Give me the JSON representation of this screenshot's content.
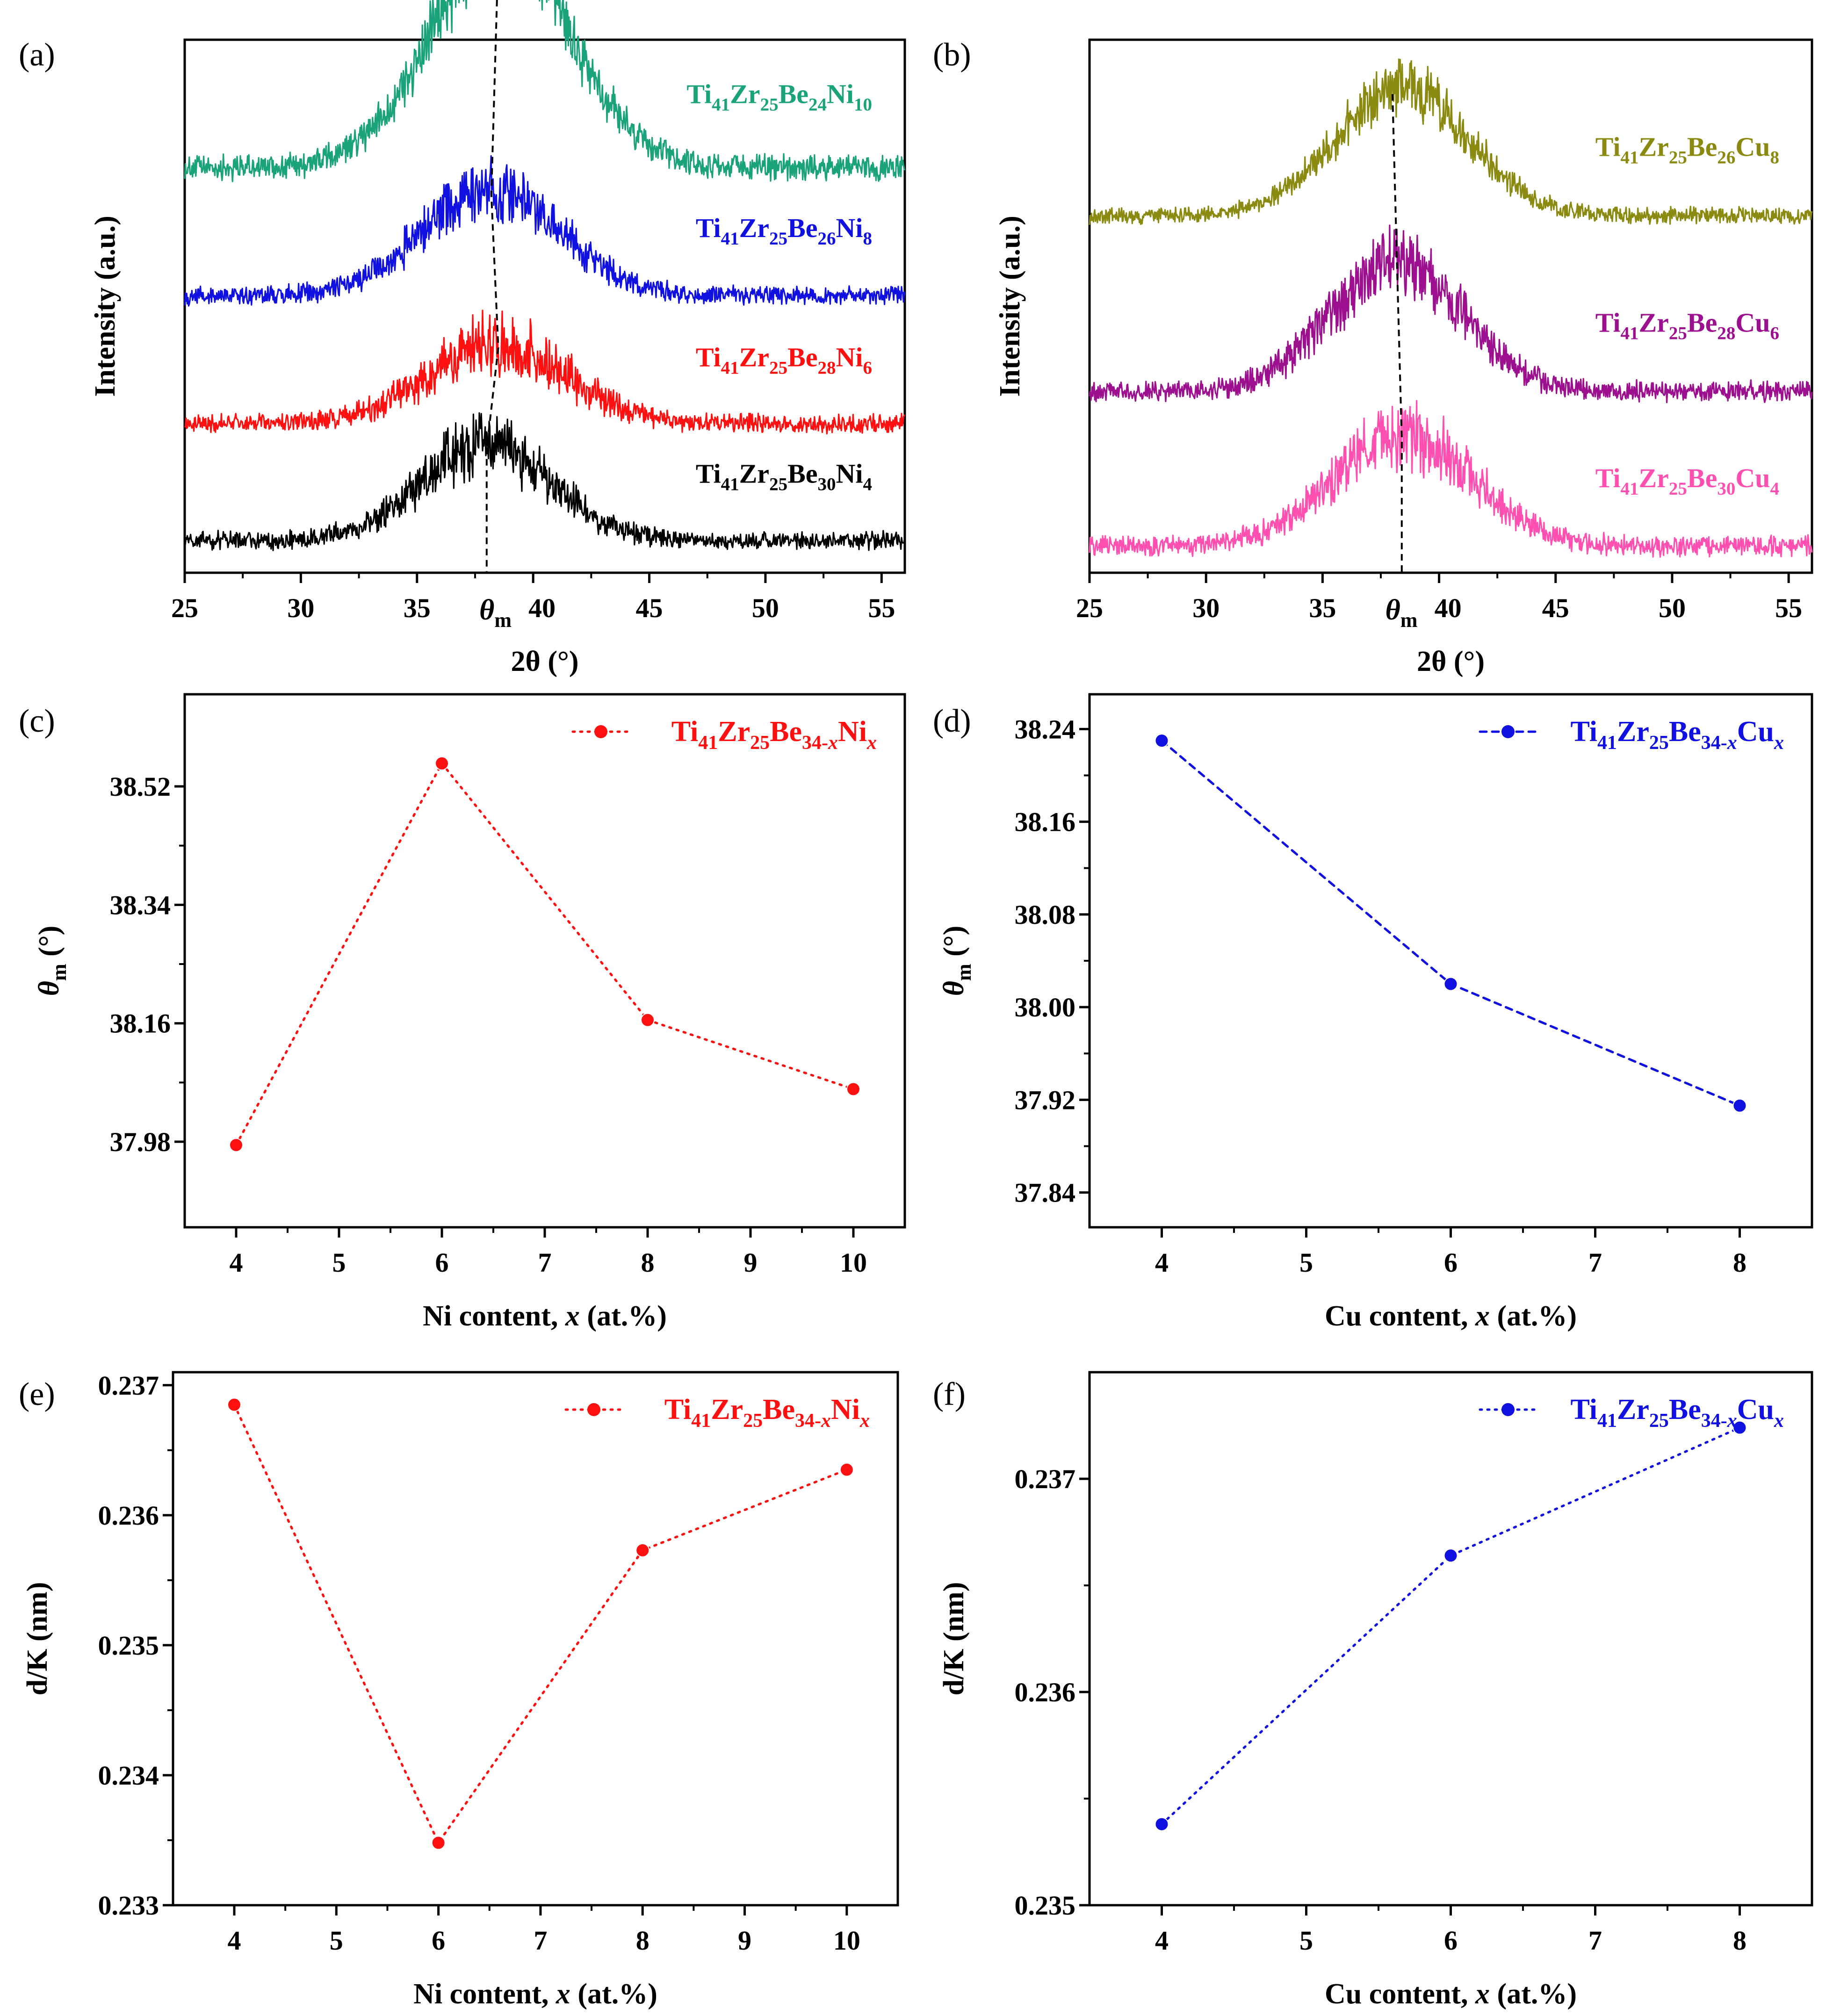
{
  "panels": [
    {
      "id": "a",
      "label": "(a)",
      "chart_data": {
        "type": "line",
        "title": "",
        "xlabel": "2θ (°)",
        "ylabel": "Intensity (a.u.)",
        "xlim": [
          25,
          56
        ],
        "xticks": [
          25,
          30,
          35,
          40,
          45,
          50,
          55
        ],
        "xtick_labels": [
          "25",
          "30",
          "35",
          "40",
          "45",
          "50",
          "55"
        ],
        "marker_label": "θ",
        "marker_sub": "m",
        "series": [
          {
            "name": "Ti41Zr25Be24Ni10",
            "parts": [
              [
                "Ti",
                ""
              ],
              [
                "41",
                "sub"
              ],
              [
                "Zr",
                ""
              ],
              [
                "25",
                "sub"
              ],
              [
                "Be",
                ""
              ],
              [
                "24",
                "sub"
              ],
              [
                "Ni",
                ""
              ],
              [
                "10",
                "sub"
              ]
            ],
            "color": "#1aa37a",
            "baseline": 0.24,
            "amp": 0.42,
            "peak": 38.6,
            "width": 4.2,
            "noise": 0.07
          },
          {
            "name": "Ti41Zr25Be26Ni8",
            "parts": [
              [
                "Ti",
                ""
              ],
              [
                "41",
                "sub"
              ],
              [
                "Zr",
                ""
              ],
              [
                "25",
                "sub"
              ],
              [
                "Be",
                ""
              ],
              [
                "26",
                "sub"
              ],
              [
                "Ni",
                ""
              ],
              [
                "8",
                "sub"
              ]
            ],
            "color": "#1010e0",
            "baseline": 0.48,
            "amp": 0.2,
            "peak": 38.2,
            "width": 4.2,
            "noise": 0.05
          },
          {
            "name": "Ti41Zr25Be28Ni6",
            "parts": [
              [
                "Ti",
                ""
              ],
              [
                "41",
                "sub"
              ],
              [
                "Zr",
                ""
              ],
              [
                "25",
                "sub"
              ],
              [
                "Be",
                ""
              ],
              [
                "28",
                "sub"
              ],
              [
                "Ni",
                ""
              ],
              [
                "6",
                "sub"
              ]
            ],
            "color": "#ff1010",
            "baseline": 0.72,
            "amp": 0.15,
            "peak": 38.5,
            "width": 4.2,
            "noise": 0.05
          },
          {
            "name": "Ti41Zr25Be30Ni4",
            "parts": [
              [
                "Ti",
                ""
              ],
              [
                "41",
                "sub"
              ],
              [
                "Zr",
                ""
              ],
              [
                "25",
                "sub"
              ],
              [
                "Be",
                ""
              ],
              [
                "30",
                "sub"
              ],
              [
                "Ni",
                ""
              ],
              [
                "4",
                "sub"
              ]
            ],
            "color": "#000000",
            "baseline": 0.94,
            "amp": 0.18,
            "peak": 38.0,
            "width": 4.0,
            "noise": 0.05
          }
        ],
        "peak_line_x": [
          38.5,
          38.2,
          38.5,
          38.0
        ]
      }
    },
    {
      "id": "b",
      "label": "(b)",
      "chart_data": {
        "type": "line",
        "title": "",
        "xlabel": "2θ (°)",
        "ylabel": "Intensity (a.u.)",
        "xlim": [
          25,
          56
        ],
        "xticks": [
          25,
          30,
          35,
          40,
          45,
          50,
          55
        ],
        "xtick_labels": [
          "25",
          "30",
          "35",
          "40",
          "45",
          "50",
          "55"
        ],
        "marker_label": "θ",
        "marker_sub": "m",
        "series": [
          {
            "name": "Ti41Zr25Be26Cu8",
            "parts": [
              [
                "Ti",
                ""
              ],
              [
                "41",
                "sub"
              ],
              [
                "Zr",
                ""
              ],
              [
                "25",
                "sub"
              ],
              [
                "Be",
                ""
              ],
              [
                "26",
                "sub"
              ],
              [
                "Cu",
                ""
              ],
              [
                "8",
                "sub"
              ]
            ],
            "color": "#8a8a10",
            "baseline": 0.33,
            "amp": 0.24,
            "peak": 38.4,
            "width": 4.0,
            "noise": 0.045
          },
          {
            "name": "Ti41Zr25Be28Cu6",
            "parts": [
              [
                "Ti",
                ""
              ],
              [
                "41",
                "sub"
              ],
              [
                "Zr",
                ""
              ],
              [
                "25",
                "sub"
              ],
              [
                "Be",
                ""
              ],
              [
                "28",
                "sub"
              ],
              [
                "Cu",
                ""
              ],
              [
                "6",
                "sub"
              ]
            ],
            "color": "#9c1090",
            "baseline": 0.66,
            "amp": 0.24,
            "peak": 38.2,
            "width": 4.0,
            "noise": 0.055
          },
          {
            "name": "Ti41Zr25Be30Cu4",
            "parts": [
              [
                "Ti",
                ""
              ],
              [
                "41",
                "sub"
              ],
              [
                "Zr",
                ""
              ],
              [
                "25",
                "sub"
              ],
              [
                "Be",
                ""
              ],
              [
                "30",
                "sub"
              ],
              [
                "Cu",
                ""
              ],
              [
                "4",
                "sub"
              ]
            ],
            "color": "#ff4fb0",
            "baseline": 0.95,
            "amp": 0.21,
            "peak": 38.5,
            "width": 4.2,
            "noise": 0.055
          }
        ],
        "peak_line_x": [
          38.0,
          38.2,
          38.4
        ]
      }
    },
    {
      "id": "c",
      "label": "(c)",
      "chart_data": {
        "type": "scatter",
        "title": "",
        "xlabel_parts": [
          [
            "Ni content, ",
            ""
          ],
          [
            "x",
            "i"
          ],
          [
            " (at.%)",
            ""
          ]
        ],
        "ylabel": "θ",
        "ylabel_sub": "m",
        "ylabel_unit": " (°)",
        "xlim": [
          3.5,
          10.5
        ],
        "ylim": [
          37.85,
          38.66
        ],
        "xticks": [
          4,
          5,
          6,
          7,
          8,
          9,
          10
        ],
        "xtick_labels": [
          "4",
          "5",
          "6",
          "7",
          "8",
          "9",
          "10"
        ],
        "yticks": [
          37.98,
          38.16,
          38.34,
          38.52
        ],
        "ytick_labels": [
          "37.98",
          "38.16",
          "38.34",
          "38.52"
        ],
        "color": "#ff1010",
        "dash": "4 12",
        "legend_position": "top-right",
        "legend_parts": [
          [
            "Ti",
            ""
          ],
          [
            "41",
            "sub"
          ],
          [
            "Zr",
            ""
          ],
          [
            "25",
            "sub"
          ],
          [
            "Be",
            ""
          ],
          [
            "34-",
            "sub"
          ],
          [
            "x",
            "subi"
          ],
          [
            "Ni",
            ""
          ],
          [
            "x",
            "subi"
          ]
        ],
        "series": [
          {
            "name": "Ti41Zr25Be34-xNix",
            "x": [
              4,
              6,
              8,
              10
            ],
            "y": [
              37.975,
              38.555,
              38.165,
              38.06
            ]
          }
        ]
      }
    },
    {
      "id": "d",
      "label": "(d)",
      "chart_data": {
        "type": "scatter",
        "title": "",
        "xlabel_parts": [
          [
            "Cu content, ",
            ""
          ],
          [
            "x",
            "i"
          ],
          [
            " (at.%)",
            ""
          ]
        ],
        "ylabel": "θ",
        "ylabel_sub": "m",
        "ylabel_unit": " (°)",
        "xlim": [
          3.5,
          8.5
        ],
        "ylim": [
          37.81,
          38.27
        ],
        "xticks": [
          4,
          5,
          6,
          7,
          8
        ],
        "xtick_labels": [
          "4",
          "5",
          "6",
          "7",
          "8"
        ],
        "yticks": [
          37.84,
          37.92,
          38.0,
          38.08,
          38.16,
          38.24
        ],
        "ytick_labels": [
          "37.84",
          "37.92",
          "38.00",
          "38.08",
          "38.16",
          "38.24"
        ],
        "color": "#1010e0",
        "dash": "14 12",
        "legend_position": "top-right",
        "legend_parts": [
          [
            "Ti",
            ""
          ],
          [
            "41",
            "sub"
          ],
          [
            "Zr",
            ""
          ],
          [
            "25",
            "sub"
          ],
          [
            "Be",
            ""
          ],
          [
            "34-",
            "sub"
          ],
          [
            "x",
            "subi"
          ],
          [
            "Cu",
            ""
          ],
          [
            "x",
            "subi"
          ]
        ],
        "series": [
          {
            "name": "Ti41Zr25Be34-xCux",
            "x": [
              4,
              6,
              8
            ],
            "y": [
              38.23,
              38.02,
              37.915
            ]
          }
        ]
      }
    },
    {
      "id": "e",
      "label": "(e)",
      "chart_data": {
        "type": "scatter",
        "title": "",
        "xlabel_parts": [
          [
            "Ni content, ",
            ""
          ],
          [
            "x",
            "i"
          ],
          [
            " (at.%)",
            ""
          ]
        ],
        "ylabel": "d/K (nm)",
        "xlim": [
          3.4,
          10.5
        ],
        "ylim": [
          0.233,
          0.2371
        ],
        "xticks": [
          4,
          5,
          6,
          7,
          8,
          9,
          10
        ],
        "xtick_labels": [
          "4",
          "5",
          "6",
          "7",
          "8",
          "9",
          "10"
        ],
        "yticks": [
          0.233,
          0.234,
          0.235,
          0.236,
          0.237
        ],
        "ytick_labels": [
          "0.233",
          "0.234",
          "0.235",
          "0.236",
          "0.237"
        ],
        "color": "#ff1010",
        "dash": "4 12",
        "legend_position": "top-right",
        "legend_parts": [
          [
            "Ti",
            ""
          ],
          [
            "41",
            "sub"
          ],
          [
            "Zr",
            ""
          ],
          [
            "25",
            "sub"
          ],
          [
            "Be",
            ""
          ],
          [
            "34-",
            "sub"
          ],
          [
            "x",
            "subi"
          ],
          [
            "Ni",
            ""
          ],
          [
            "x",
            "subi"
          ]
        ],
        "series": [
          {
            "name": "Ti41Zr25Be34-xNix",
            "x": [
              4,
              6,
              8,
              10
            ],
            "y": [
              0.23685,
              0.23348,
              0.23573,
              0.23635
            ]
          }
        ]
      }
    },
    {
      "id": "f",
      "label": "(f)",
      "chart_data": {
        "type": "scatter",
        "title": "",
        "xlabel_parts": [
          [
            "Cu content, ",
            ""
          ],
          [
            "x",
            "i"
          ],
          [
            " (at.%)",
            ""
          ]
        ],
        "ylabel": "d/K (nm)",
        "xlim": [
          3.5,
          8.5
        ],
        "ylim": [
          0.235,
          0.2375
        ],
        "xticks": [
          4,
          5,
          6,
          7,
          8
        ],
        "xtick_labels": [
          "4",
          "5",
          "6",
          "7",
          "8"
        ],
        "yticks": [
          0.235,
          0.236,
          0.237
        ],
        "ytick_labels": [
          "0.235",
          "0.236",
          "0.237"
        ],
        "color": "#1010e0",
        "dash": "4 12",
        "legend_position": "top-right",
        "legend_parts": [
          [
            "Ti",
            ""
          ],
          [
            "41",
            "sub"
          ],
          [
            "Zr",
            ""
          ],
          [
            "25",
            "sub"
          ],
          [
            "Be",
            ""
          ],
          [
            "34-",
            "sub"
          ],
          [
            "x",
            "subi"
          ],
          [
            "Cu",
            ""
          ],
          [
            "x",
            "subi"
          ]
        ],
        "series": [
          {
            "name": "Ti41Zr25Be34-xCux",
            "x": [
              4,
              6,
              8
            ],
            "y": [
              0.23538,
              0.23664,
              0.23724
            ]
          }
        ]
      }
    }
  ]
}
